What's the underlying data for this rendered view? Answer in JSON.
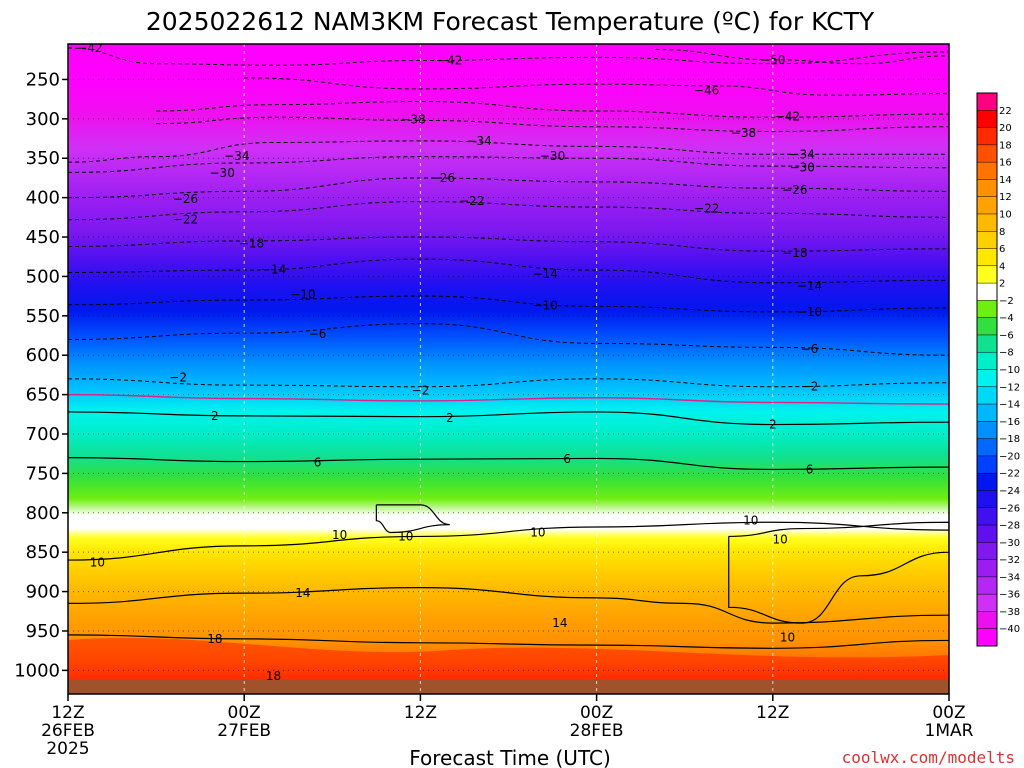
{
  "chart_data": {
    "type": "heatmap",
    "title": "2025022612 NAM3KM Forecast Temperature (ºC) for KCTY",
    "xlabel": "Forecast Time (UTC)",
    "credit": "coolwx.com/modelts",
    "y_ticks": [
      250,
      300,
      350,
      400,
      450,
      500,
      550,
      600,
      650,
      700,
      750,
      800,
      850,
      900,
      950,
      1000
    ],
    "y_axis_inverted": true,
    "x_ticks": [
      {
        "hours": 0,
        "lines": [
          "12Z",
          "26FEB",
          "2025"
        ]
      },
      {
        "hours": 12,
        "lines": [
          "00Z",
          "27FEB"
        ]
      },
      {
        "hours": 24,
        "lines": [
          "12Z"
        ]
      },
      {
        "hours": 36,
        "lines": [
          "00Z",
          "28FEB"
        ]
      },
      {
        "hours": 48,
        "lines": [
          "12Z"
        ]
      },
      {
        "hours": 60,
        "lines": [
          "00Z",
          "1MAR"
        ]
      }
    ],
    "x_range_hours": [
      0,
      60
    ],
    "colorbar": {
      "labels": [
        22,
        20,
        18,
        16,
        14,
        12,
        10,
        8,
        6,
        4,
        2,
        -2,
        -4,
        -6,
        -8,
        -10,
        -12,
        -14,
        -16,
        -18,
        -20,
        -22,
        -24,
        -26,
        -28,
        -30,
        -32,
        -34,
        -36,
        -38,
        -40
      ],
      "colors": [
        "#ff0080",
        "#ff0000",
        "#ff2a00",
        "#ff5000",
        "#ff7400",
        "#ff9000",
        "#ffa300",
        "#ffba00",
        "#ffcf00",
        "#ffe800",
        "#ffff20",
        "#ffffff",
        "#70ee10",
        "#30e040",
        "#10e090",
        "#00eec8",
        "#00f2ee",
        "#00d8f8",
        "#00b8ff",
        "#0090ff",
        "#0068ff",
        "#0040ff",
        "#0018ee",
        "#2010f0",
        "#4010f0",
        "#6010f0",
        "#8018f0",
        "#9a1ef2",
        "#b428f4",
        "#d030f6",
        "#ec10f0",
        "#ff00ff"
      ]
    },
    "isotherms": [
      {
        "value": -42,
        "points": [
          [
            0,
            210
          ],
          [
            6,
            230
          ],
          [
            14,
            232
          ],
          [
            24,
            226
          ],
          [
            36,
            222
          ],
          [
            48,
            230
          ],
          [
            60,
            215
          ]
        ],
        "style": "dashed",
        "labels": [
          [
            1.5,
            210
          ],
          [
            26,
            226
          ]
        ]
      },
      {
        "value": -50,
        "points": [
          [
            40,
            212
          ],
          [
            48,
            225
          ],
          [
            54,
            230
          ],
          [
            60,
            220
          ]
        ],
        "style": "dashed",
        "labels": [
          [
            48,
            225
          ]
        ]
      },
      {
        "value": -46,
        "points": [
          [
            12,
            248
          ],
          [
            24,
            262
          ],
          [
            36,
            256
          ],
          [
            44,
            258
          ],
          [
            52,
            270
          ],
          [
            60,
            268
          ]
        ],
        "style": "dashed",
        "labels": [
          [
            43.5,
            264
          ]
        ]
      },
      {
        "value": -42,
        "points": [
          [
            6,
            290
          ],
          [
            14,
            282
          ],
          [
            24,
            278
          ],
          [
            36,
            290
          ],
          [
            48,
            298
          ],
          [
            60,
            294
          ]
        ],
        "style": "dashed",
        "labels": [
          [
            49,
            297
          ]
        ]
      },
      {
        "value": -38,
        "points": [
          [
            6,
            306
          ],
          [
            14,
            298
          ],
          [
            24,
            302
          ],
          [
            36,
            310
          ],
          [
            48,
            316
          ],
          [
            60,
            310
          ]
        ],
        "style": "dashed",
        "labels": [
          [
            23.5,
            301
          ],
          [
            46,
            318
          ]
        ]
      },
      {
        "value": -34,
        "points": [
          [
            0,
            355
          ],
          [
            6,
            348
          ],
          [
            14,
            330
          ],
          [
            24,
            328
          ],
          [
            36,
            335
          ],
          [
            48,
            345
          ],
          [
            60,
            345
          ]
        ],
        "style": "dashed",
        "labels": [
          [
            11.5,
            347
          ],
          [
            28,
            328
          ],
          [
            50,
            345
          ]
        ]
      },
      {
        "value": -30,
        "points": [
          [
            0,
            368
          ],
          [
            12,
            356
          ],
          [
            24,
            348
          ],
          [
            36,
            350
          ],
          [
            48,
            360
          ],
          [
            60,
            362
          ]
        ],
        "style": "dashed",
        "labels": [
          [
            10.5,
            369
          ],
          [
            33,
            347
          ],
          [
            50,
            362
          ]
        ]
      },
      {
        "value": -26,
        "points": [
          [
            0,
            400
          ],
          [
            12,
            392
          ],
          [
            24,
            375
          ],
          [
            36,
            380
          ],
          [
            48,
            388
          ],
          [
            60,
            392
          ]
        ],
        "style": "dashed",
        "labels": [
          [
            8,
            402
          ],
          [
            25.5,
            375
          ],
          [
            49.5,
            390
          ]
        ]
      },
      {
        "value": -22,
        "points": [
          [
            0,
            428
          ],
          [
            12,
            418
          ],
          [
            24,
            405
          ],
          [
            36,
            412
          ],
          [
            48,
            420
          ],
          [
            60,
            425
          ]
        ],
        "style": "dashed",
        "labels": [
          [
            8,
            428
          ],
          [
            27.5,
            404
          ],
          [
            43.5,
            414
          ]
        ]
      },
      {
        "value": -18,
        "points": [
          [
            0,
            462
          ],
          [
            12,
            455
          ],
          [
            24,
            450
          ],
          [
            36,
            456
          ],
          [
            48,
            468
          ],
          [
            60,
            465
          ]
        ],
        "style": "dashed",
        "labels": [
          [
            12.5,
            458
          ],
          [
            49.5,
            470
          ]
        ]
      },
      {
        "value": -14,
        "points": [
          [
            0,
            495
          ],
          [
            12,
            492
          ],
          [
            24,
            478
          ],
          [
            36,
            492
          ],
          [
            48,
            508
          ],
          [
            60,
            505
          ]
        ],
        "style": "dashed",
        "labels": [
          [
            14,
            491
          ],
          [
            32.5,
            497
          ],
          [
            50.5,
            512
          ]
        ]
      },
      {
        "value": -10,
        "points": [
          [
            0,
            536
          ],
          [
            12,
            530
          ],
          [
            24,
            525
          ],
          [
            36,
            538
          ],
          [
            48,
            545
          ],
          [
            60,
            540
          ]
        ],
        "style": "dashed",
        "labels": [
          [
            16,
            523
          ],
          [
            32.5,
            537
          ],
          [
            50.5,
            545
          ]
        ]
      },
      {
        "value": -6,
        "points": [
          [
            0,
            580
          ],
          [
            12,
            572
          ],
          [
            24,
            560
          ],
          [
            36,
            585
          ],
          [
            48,
            590
          ],
          [
            60,
            600
          ]
        ],
        "style": "dashed",
        "labels": [
          [
            17,
            573
          ],
          [
            50.5,
            592
          ]
        ]
      },
      {
        "value": -2,
        "points": [
          [
            0,
            630
          ],
          [
            12,
            638
          ],
          [
            24,
            640
          ],
          [
            36,
            630
          ],
          [
            48,
            640
          ],
          [
            60,
            635
          ]
        ],
        "style": "dashed",
        "labels": [
          [
            7.5,
            628
          ],
          [
            24,
            645
          ],
          [
            50.5,
            640
          ]
        ]
      },
      {
        "value": 0,
        "points": [
          [
            0,
            650
          ],
          [
            12,
            655
          ],
          [
            24,
            658
          ],
          [
            36,
            654
          ],
          [
            48,
            660
          ],
          [
            60,
            662
          ]
        ],
        "style": "pink",
        "labels": []
      },
      {
        "value": 2,
        "points": [
          [
            0,
            672
          ],
          [
            12,
            677
          ],
          [
            24,
            678
          ],
          [
            36,
            672
          ],
          [
            48,
            688
          ],
          [
            60,
            685
          ]
        ],
        "style": "solid",
        "labels": [
          [
            10,
            677
          ],
          [
            26,
            680
          ],
          [
            48,
            688
          ]
        ]
      },
      {
        "value": 6,
        "points": [
          [
            0,
            730
          ],
          [
            12,
            735
          ],
          [
            24,
            732
          ],
          [
            36,
            731
          ],
          [
            48,
            745
          ],
          [
            60,
            742
          ]
        ],
        "style": "solid",
        "labels": [
          [
            17,
            736
          ],
          [
            34,
            732
          ],
          [
            50.5,
            745
          ]
        ]
      },
      {
        "value": 10,
        "points": [
          [
            0,
            860
          ],
          [
            12,
            842
          ],
          [
            24,
            830
          ],
          [
            36,
            818
          ],
          [
            48,
            812
          ],
          [
            60,
            822
          ]
        ],
        "style": "solid",
        "labels": [
          [
            2,
            863
          ],
          [
            18.5,
            828
          ],
          [
            32,
            825
          ],
          [
            46.5,
            810
          ]
        ]
      },
      {
        "value": 10,
        "points": [
          [
            21,
            790
          ],
          [
            24,
            790
          ],
          [
            26,
            815
          ],
          [
            22,
            825
          ],
          [
            21,
            810
          ],
          [
            21,
            790
          ]
        ],
        "style": "solid",
        "labels": [
          [
            23,
            830
          ]
        ]
      },
      {
        "value": 10,
        "points": [
          [
            45,
            830
          ],
          [
            50,
            820
          ],
          [
            60,
            812
          ],
          [
            60,
            850
          ],
          [
            54,
            880
          ],
          [
            50,
            940
          ],
          [
            45,
            920
          ],
          [
            45,
            830
          ]
        ],
        "style": "solid",
        "labels": [
          [
            48.5,
            834
          ],
          [
            49,
            958
          ]
        ]
      },
      {
        "value": 14,
        "points": [
          [
            0,
            915
          ],
          [
            12,
            902
          ],
          [
            24,
            895
          ],
          [
            36,
            908
          ],
          [
            42,
            915
          ],
          [
            48,
            940
          ],
          [
            60,
            930
          ]
        ],
        "style": "solid",
        "labels": [
          [
            16,
            902
          ],
          [
            33.5,
            940
          ]
        ]
      },
      {
        "value": 18,
        "points": [
          [
            0,
            955
          ],
          [
            12,
            960
          ],
          [
            24,
            965
          ],
          [
            36,
            968
          ],
          [
            48,
            972
          ],
          [
            60,
            962
          ]
        ],
        "style": "solid",
        "labels": [
          [
            10,
            960
          ],
          [
            14,
            1007
          ]
        ]
      }
    ]
  }
}
